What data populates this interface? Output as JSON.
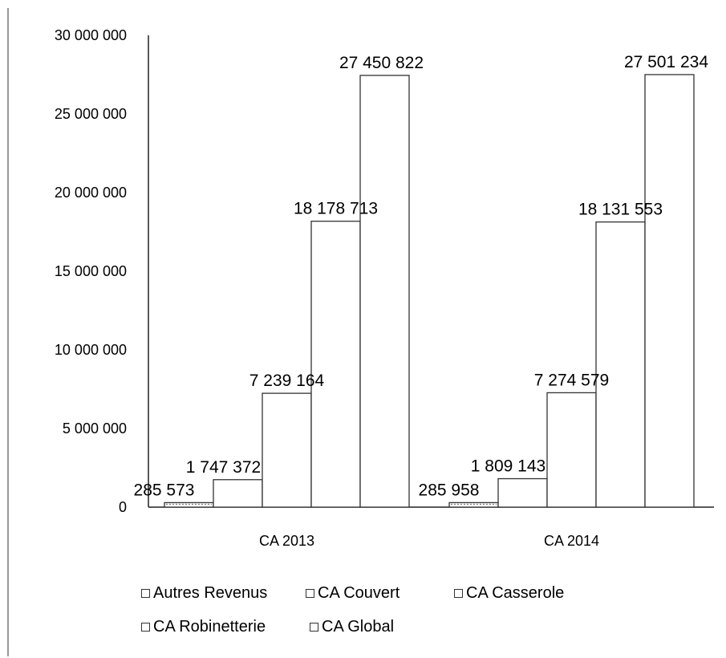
{
  "chart_data": {
    "type": "bar",
    "categories": [
      "CA 2013",
      "CA 2014"
    ],
    "series": [
      {
        "name": "Autres Revenus",
        "values": [
          285573,
          285958
        ],
        "labels": [
          "285 573",
          "285 958"
        ]
      },
      {
        "name": "CA Couvert",
        "values": [
          1747372,
          1809143
        ],
        "labels": [
          "1 747 372",
          "1 809 143"
        ]
      },
      {
        "name": "CA Casserole",
        "values": [
          7239164,
          7274579
        ],
        "labels": [
          "7 239 164",
          "7 274 579"
        ]
      },
      {
        "name": "CA Robinetterie",
        "values": [
          18178713,
          18131553
        ],
        "labels": [
          "18 178 713",
          "18 131 553"
        ]
      },
      {
        "name": "CA Global",
        "values": [
          27450822,
          27501234
        ],
        "labels": [
          "27 450 822",
          "27 501 234"
        ]
      }
    ],
    "ylim": [
      0,
      30000000
    ],
    "yticks": [
      0,
      5000000,
      10000000,
      15000000,
      20000000,
      25000000,
      30000000
    ],
    "ytick_labels": [
      "0",
      "5 000 000",
      "10 000 000",
      "15 000 000",
      "20 000 000",
      "25 000 000",
      "30 000 000"
    ],
    "title": "",
    "xlabel": "",
    "ylabel": "",
    "legend_position": "bottom",
    "grid": false,
    "colors": {
      "bar_fill": "#ffffff",
      "stroke": "#333333",
      "text": "#000000"
    }
  }
}
